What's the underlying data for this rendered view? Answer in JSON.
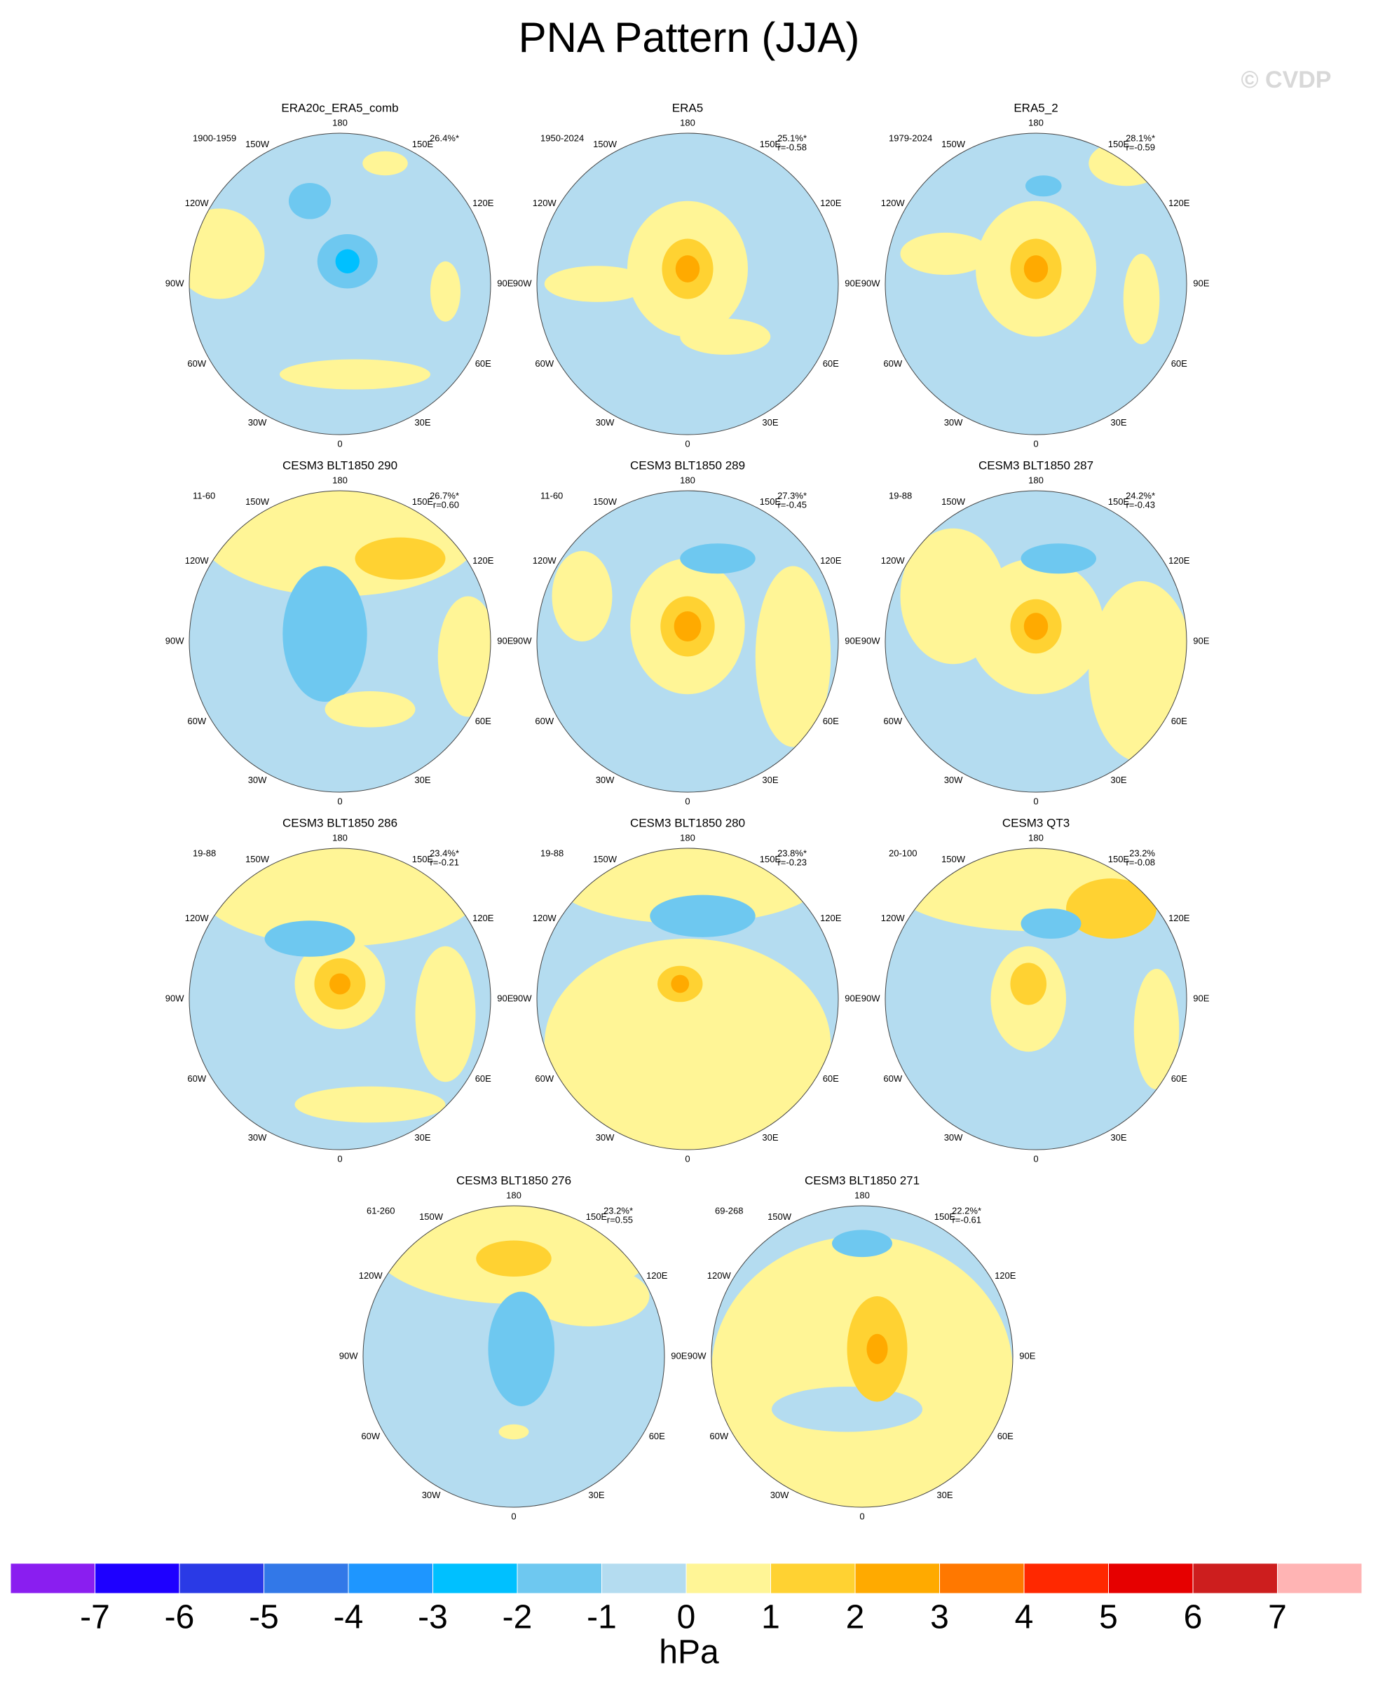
{
  "title": "PNA Pattern (JJA)",
  "watermark": "© CVDP",
  "lon_labels": [
    "0",
    "30E",
    "60E",
    "90E",
    "120E",
    "150E",
    "180",
    "150W",
    "120W",
    "90W",
    "60W",
    "30W"
  ],
  "panels": [
    {
      "title": "ERA20c_ERA5_comb",
      "period": "1900-1959",
      "pct": "26.4%*"
    },
    {
      "title": "ERA5",
      "period": "1950-2024",
      "pct": "25.1%*",
      "corr": "r=-0.58"
    },
    {
      "title": "ERA5_2",
      "period": "1979-2024",
      "pct": "28.1%*",
      "corr": "r=-0.59"
    },
    {
      "title": "CESM3 BLT1850 290",
      "period": "11-60",
      "pct": "26.7%*",
      "corr": "r=0.60"
    },
    {
      "title": "CESM3 BLT1850 289",
      "period": "11-60",
      "pct": "27.3%*",
      "corr": "r=-0.45"
    },
    {
      "title": "CESM3 BLT1850 287",
      "period": "19-88",
      "pct": "24.2%*",
      "corr": "r=-0.43"
    },
    {
      "title": "CESM3 BLT1850 286",
      "period": "19-88",
      "pct": "23.4%*",
      "corr": "r=-0.21"
    },
    {
      "title": "CESM3 BLT1850 280",
      "period": "19-88",
      "pct": "23.8%*",
      "corr": "r=-0.23"
    },
    {
      "title": "CESM3 QT3",
      "period": "20-100",
      "pct": "23.2%",
      "corr": "r=-0.08"
    },
    {
      "title": "CESM3 BLT1850 276",
      "period": "61-260",
      "pct": "23.2%*",
      "corr": "r=0.55"
    },
    {
      "title": "CESM3 BLT1850 271",
      "period": "69-268",
      "pct": "22.2%*",
      "corr": "r=-0.61"
    }
  ],
  "colorbar": {
    "ticks": [
      -7,
      -6,
      -5,
      -4,
      -3,
      -2,
      -1,
      0,
      1,
      2,
      3,
      4,
      5,
      6,
      7
    ],
    "colors": [
      "#8a1ef0",
      "#1e00ff",
      "#2a3ae6",
      "#3278e8",
      "#1e96ff",
      "#00c0ff",
      "#6ec8f0",
      "#b4dcf0",
      "#fff596",
      "#ffd232",
      "#ffaa00",
      "#ff7800",
      "#ff2800",
      "#e60000",
      "#cd1e1e",
      "#ffb4b4"
    ],
    "label": "hPa"
  }
}
